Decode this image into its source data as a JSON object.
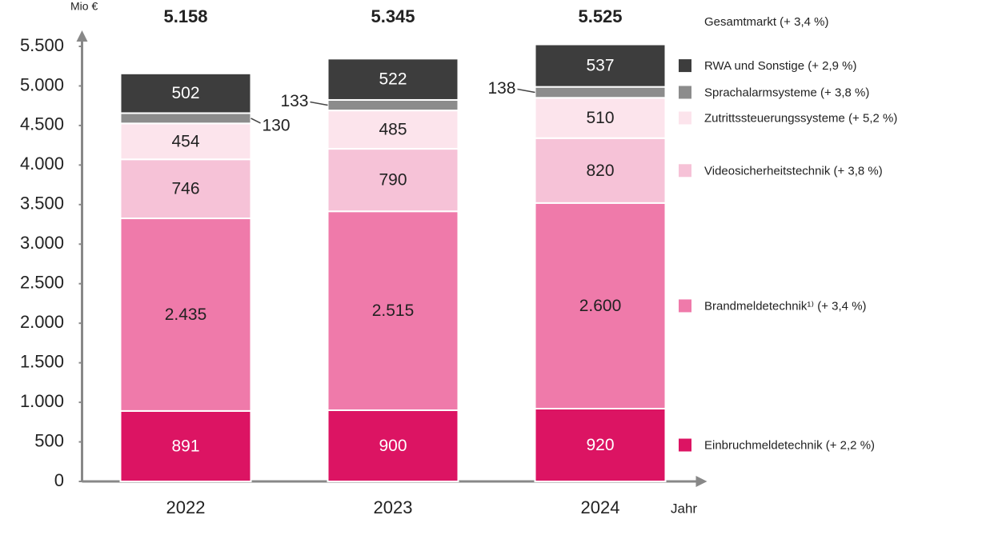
{
  "chart_data": {
    "type": "stacked_bar",
    "y_unit": "Mio €",
    "x_label": "Jahr",
    "categories": [
      "2022",
      "2023",
      "2024"
    ],
    "series": [
      {
        "name": "Einbruchmeldetechnik (+ 2,2 %)",
        "color": "#dc1463",
        "values": [
          891,
          900,
          920
        ]
      },
      {
        "name": "Brandmeldetechnik¹⁾ (+ 3,4 %)",
        "color": "#ef7aaa",
        "values": [
          2435,
          2515,
          2600
        ],
        "value_labels": [
          "2.435",
          "2.515",
          "2.600"
        ]
      },
      {
        "name": "Videosicherheitstechnik (+ 3,8 %)",
        "color": "#f6c2d7",
        "values": [
          746,
          790,
          820
        ]
      },
      {
        "name": "Zutrittssteuerungssysteme (+ 5,2 %)",
        "color": "#fce4ec",
        "values": [
          454,
          485,
          510
        ]
      },
      {
        "name": "Sprachalarmsysteme (+ 3,8 %)",
        "color": "#8c8c8c",
        "values": [
          130,
          133,
          138
        ]
      },
      {
        "name": "RWA und Sonstige (+ 2,9 %)",
        "color": "#3d3d3d",
        "values": [
          502,
          522,
          537
        ]
      }
    ],
    "totals": {
      "name": "Gesamtmarkt (+ 3,4 %)",
      "values": [
        5158,
        5345,
        5525
      ],
      "value_labels": [
        "5.158",
        "5.345",
        "5.525"
      ]
    },
    "ylim": [
      0,
      5500
    ],
    "yticks": [
      0,
      500,
      {
        "value": 1000,
        "label": "1.000"
      },
      {
        "value": 1500,
        "label": "1.500"
      },
      {
        "value": 2000,
        "label": "2.000"
      },
      {
        "value": 2500,
        "label": "2.500"
      },
      {
        "value": 3000,
        "label": "3.000"
      },
      {
        "value": 3500,
        "label": "3.500"
      },
      {
        "value": 4000,
        "label": "4.000"
      },
      {
        "value": 4500,
        "label": "4.500"
      },
      {
        "value": 5000,
        "label": "5.000"
      },
      {
        "value": 5500,
        "label": "5.500"
      }
    ],
    "grid": false,
    "legend": "right"
  }
}
